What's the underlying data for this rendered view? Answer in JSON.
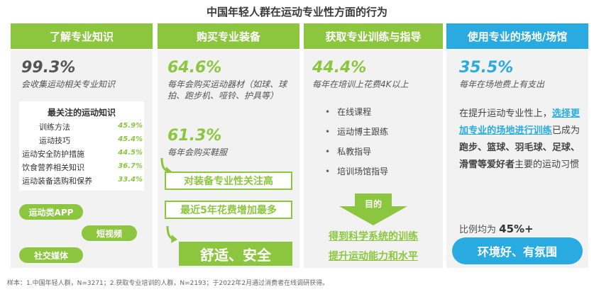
{
  "title": "中国年轻人群在运动专业性方面的行为",
  "colors": {
    "green": "#8cc63f",
    "green_light": "#9dcf5a",
    "blue": "#29abe2",
    "panel": "#f2f2f2"
  },
  "col1": {
    "header": "了解专业知识",
    "big": "99.3%",
    "sub": "会收集运动相关专业知识",
    "knowledge_title": "最关注的运动知识",
    "knowledge": [
      {
        "label": "训练方法",
        "value": "45.9%"
      },
      {
        "label": "运动技巧",
        "value": "45.4%"
      },
      {
        "label": "运动安全防护措施",
        "value": "44.5%"
      },
      {
        "label": "饮食营养相关知识",
        "value": "36.7%"
      },
      {
        "label": "运动装备选购和保养",
        "value": "33.4%"
      }
    ],
    "pills": [
      "运动类APP",
      "短视频",
      "社交媒体"
    ]
  },
  "col2": {
    "header": "购买专业装备",
    "big1": "64.6%",
    "sub1": "每年会购买运动器材（如球、球拍、跑步机、哑铃、护具等）",
    "big2": "61.3%",
    "sub2": "每年会购买鞋服",
    "box1": "对装备专业性关注高",
    "box2": "最近5年花费增加最多",
    "result": "舒适、安全"
  },
  "col3": {
    "header": "获取专业训练与指导",
    "big": "44.4%",
    "sub": "每年在培训上花费4K以上",
    "items": [
      "在线课程",
      "运动博主跟练",
      "私教指导",
      "培训场馆指导"
    ],
    "arrow_label": "目的",
    "result1": "得到科学系统的训练",
    "result2": "提升运动能力和水平"
  },
  "col4": {
    "header": "使用专业的场地/场馆",
    "big": "35.5%",
    "sub": "每年在场地费上有支出",
    "para_pre": "在提升运动专业性上，",
    "para_hl": "选择更加专业的场地进行训练",
    "para_mid": "已成为",
    "para_bold": "跑步、篮球、羽毛球、足球、滑雪等爱好者",
    "para_post": "主要的运动习惯",
    "ratio_pre": "比例均为",
    "ratio_val": "45%+",
    "result": "环境好、有氛围"
  },
  "footnote": "样本：1.中国年轻人群，N=3271；2.获取专业培训的人群，N=2193；于2022年2月通过消费者在线调研获得。"
}
